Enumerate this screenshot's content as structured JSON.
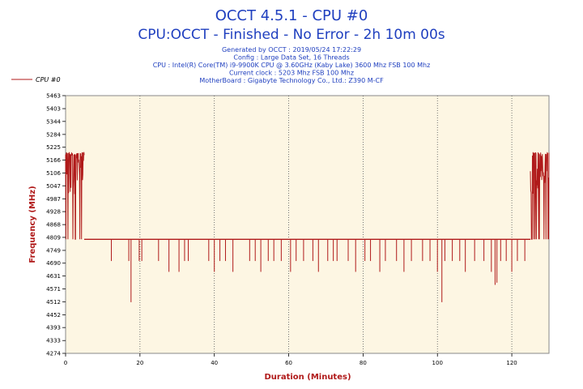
{
  "chart_data": {
    "type": "line",
    "title": "OCCT 4.5.1 - CPU #0",
    "subtitle": "CPU:OCCT - Finished - No Error - 2h 10m 00s",
    "info_lines": [
      "Generated by OCCT : 2019/05/24 17:22:29",
      "Config : Large Data Set, 16 Threads",
      "CPU : Intel(R) Core(TM) i9-9900K CPU @ 3.60GHz (Kaby Lake) 3600 Mhz FSB 100 Mhz",
      "Current clock : 5203 Mhz FSB 100 Mhz",
      "MotherBoard : Gigabyte Technology Co., Ltd.: Z390 M-CF"
    ],
    "xlabel": "Duration (Minutes)",
    "ylabel": "Frequency (MHz)",
    "xlim": [
      0,
      130
    ],
    "ylim": [
      4274,
      5463
    ],
    "x_ticks": [
      0,
      20,
      40,
      60,
      80,
      100,
      120
    ],
    "y_ticks": [
      4274,
      4333,
      4393,
      4452,
      4512,
      4571,
      4631,
      4690,
      4749,
      4809,
      4868,
      4928,
      4987,
      5047,
      5106,
      5166,
      5225,
      5284,
      5344,
      5403,
      5463
    ],
    "grid": "vertical dotted",
    "legend_position": "top-left",
    "series": [
      {
        "name": "CPU #0",
        "color": "#b01a1a",
        "base_value": 4800,
        "boost_segments": [
          {
            "x_start": 0,
            "x_end": 5,
            "min": 4800,
            "max": 5203
          },
          {
            "x_start": 125,
            "x_end": 130,
            "min": 4800,
            "max": 5203
          }
        ],
        "dips": [
          {
            "x": 12.3,
            "y": 4700
          },
          {
            "x": 17.0,
            "y": 4700
          },
          {
            "x": 17.6,
            "y": 4510
          },
          {
            "x": 19.8,
            "y": 4700
          },
          {
            "x": 20.5,
            "y": 4700
          },
          {
            "x": 25.0,
            "y": 4700
          },
          {
            "x": 27.8,
            "y": 4650
          },
          {
            "x": 30.5,
            "y": 4650
          },
          {
            "x": 32.0,
            "y": 4700
          },
          {
            "x": 33.0,
            "y": 4700
          },
          {
            "x": 38.5,
            "y": 4700
          },
          {
            "x": 40.0,
            "y": 4650
          },
          {
            "x": 41.5,
            "y": 4700
          },
          {
            "x": 43.0,
            "y": 4700
          },
          {
            "x": 45.0,
            "y": 4650
          },
          {
            "x": 49.5,
            "y": 4700
          },
          {
            "x": 51.0,
            "y": 4700
          },
          {
            "x": 52.5,
            "y": 4650
          },
          {
            "x": 54.5,
            "y": 4700
          },
          {
            "x": 56.0,
            "y": 4700
          },
          {
            "x": 58.0,
            "y": 4700
          },
          {
            "x": 60.5,
            "y": 4650
          },
          {
            "x": 62.0,
            "y": 4700
          },
          {
            "x": 64.0,
            "y": 4700
          },
          {
            "x": 66.5,
            "y": 4700
          },
          {
            "x": 68.0,
            "y": 4650
          },
          {
            "x": 70.5,
            "y": 4700
          },
          {
            "x": 72.0,
            "y": 4700
          },
          {
            "x": 73.0,
            "y": 4700
          },
          {
            "x": 76.0,
            "y": 4700
          },
          {
            "x": 78.0,
            "y": 4650
          },
          {
            "x": 80.5,
            "y": 4700
          },
          {
            "x": 82.0,
            "y": 4700
          },
          {
            "x": 84.5,
            "y": 4650
          },
          {
            "x": 86.0,
            "y": 4700
          },
          {
            "x": 89.0,
            "y": 4700
          },
          {
            "x": 91.0,
            "y": 4650
          },
          {
            "x": 93.0,
            "y": 4700
          },
          {
            "x": 96.0,
            "y": 4700
          },
          {
            "x": 98.0,
            "y": 4700
          },
          {
            "x": 100.0,
            "y": 4650
          },
          {
            "x": 101.2,
            "y": 4510
          },
          {
            "x": 102.0,
            "y": 4700
          },
          {
            "x": 104.0,
            "y": 4700
          },
          {
            "x": 106.0,
            "y": 4700
          },
          {
            "x": 107.5,
            "y": 4650
          },
          {
            "x": 110.0,
            "y": 4700
          },
          {
            "x": 112.5,
            "y": 4700
          },
          {
            "x": 114.5,
            "y": 4650
          },
          {
            "x": 115.5,
            "y": 4590
          },
          {
            "x": 116.0,
            "y": 4600
          },
          {
            "x": 117.0,
            "y": 4700
          },
          {
            "x": 118.5,
            "y": 4700
          },
          {
            "x": 120.0,
            "y": 4650
          },
          {
            "x": 121.5,
            "y": 4700
          },
          {
            "x": 123.5,
            "y": 4700
          }
        ]
      }
    ]
  }
}
